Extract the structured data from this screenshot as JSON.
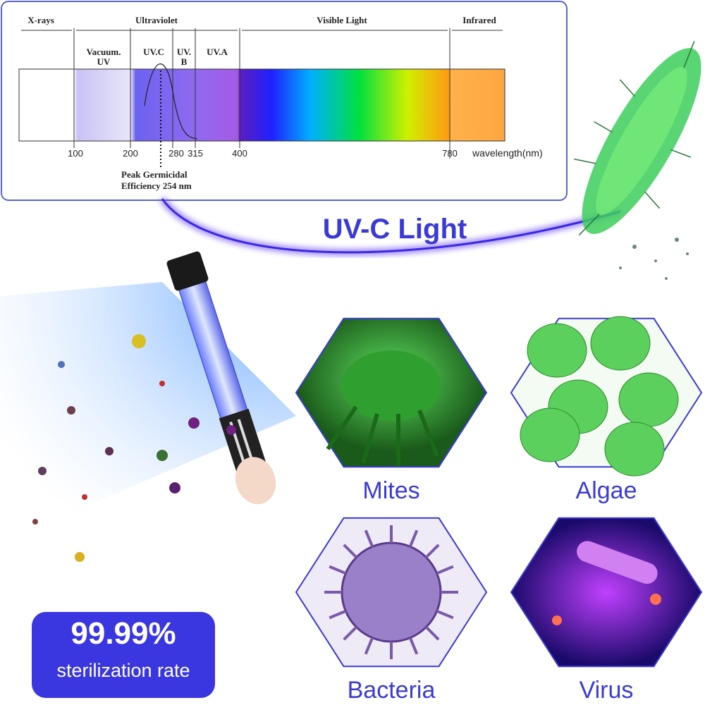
{
  "spectrum": {
    "regions": [
      "X-rays",
      "Ultraviolet",
      "Visible Light",
      "Infrared"
    ],
    "bands": [
      [
        "Vacuum.",
        "UV"
      ],
      [
        "UV.C"
      ],
      [
        "UV.",
        "B"
      ],
      [
        "UV.A"
      ]
    ],
    "wavelengths": [
      100,
      200,
      280,
      315,
      400,
      780
    ],
    "axis_label": "wavelength(nm)",
    "peak_note": [
      "Peak Germicidal",
      "Efficiency 254 nm"
    ]
  },
  "headline": "UV-C Light",
  "stat": {
    "value": "99.99%",
    "label": "sterilization rate"
  },
  "targets": [
    "Mites",
    "Algae",
    "Bacteria",
    "Virus"
  ]
}
